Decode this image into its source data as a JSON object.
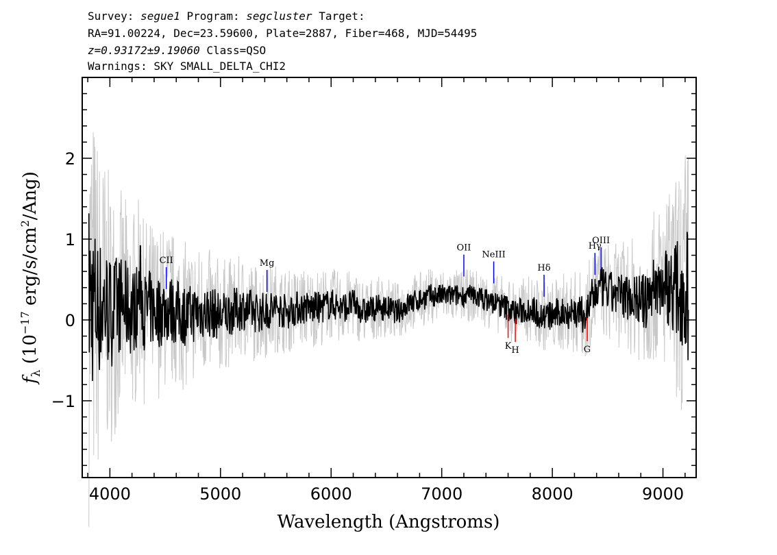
{
  "header": {
    "line1": {
      "survey_label": "Survey:",
      "survey": "segue1",
      "program_label": "Program:",
      "program": "segcluster",
      "target_label": "Target:"
    },
    "line2": "RA=91.00224, Dec=23.59600, Plate=2887, Fiber=468, MJD=54495",
    "line3": {
      "redshift": "z=0.93172±9.19060",
      "class": "Class=QSO"
    },
    "line4": "Warnings: SKY SMALL_DELTA_CHI2"
  },
  "chart_data": {
    "type": "line",
    "xlabel": "Wavelength (Angstroms)",
    "ylabel_parts": [
      "f",
      "λ",
      " (10",
      "−17",
      " erg/s/cm",
      "2",
      "/Ang)"
    ],
    "xlim": [
      3750,
      9300
    ],
    "ylim": [
      -1.95,
      3.0
    ],
    "x_ticks": [
      4000,
      5000,
      6000,
      7000,
      8000,
      9000
    ],
    "x_tick_labels": [
      "4000",
      "5000",
      "6000",
      "7000",
      "8000",
      "9000"
    ],
    "y_ticks": [
      -1,
      0,
      1,
      2
    ],
    "y_tick_labels": [
      "−1",
      "0",
      "1",
      "2"
    ],
    "series": [
      {
        "role": "flux",
        "color": "#000000",
        "x": [
          3810,
          3850,
          3900,
          3950,
          4000,
          4050,
          4100,
          4150,
          4200,
          4250,
          4280,
          4300,
          4350,
          4400,
          4450,
          4500,
          4600,
          4700,
          4800,
          4900,
          5000,
          5100,
          5200,
          5300,
          5400,
          5500,
          5600,
          5700,
          5800,
          5900,
          6000,
          6100,
          6200,
          6300,
          6400,
          6500,
          6600,
          6700,
          6800,
          6900,
          7000,
          7100,
          7200,
          7300,
          7400,
          7500,
          7600,
          7650,
          7700,
          7800,
          7900,
          8000,
          8100,
          8200,
          8300,
          8350,
          8400,
          8450,
          8500,
          8600,
          8700,
          8800,
          8850,
          8900,
          9000,
          9100,
          9200,
          9230
        ],
        "y": [
          0.3,
          0.2,
          0.15,
          0.2,
          0.1,
          0.15,
          0.2,
          0.15,
          0.1,
          0.2,
          0.5,
          0.1,
          0.15,
          0.1,
          0.1,
          0.15,
          0.1,
          0.05,
          0.1,
          0.1,
          0.05,
          0.1,
          0.15,
          0.1,
          0.1,
          0.15,
          0.1,
          0.15,
          0.15,
          0.15,
          0.2,
          0.15,
          0.2,
          0.1,
          0.15,
          0.15,
          0.1,
          0.2,
          0.25,
          0.3,
          0.3,
          0.3,
          0.3,
          0.3,
          0.25,
          0.2,
          0.15,
          0.1,
          0.1,
          0.15,
          0.05,
          0.05,
          0.1,
          0.1,
          0.05,
          0.25,
          0.35,
          0.4,
          0.35,
          0.3,
          0.3,
          0.25,
          0.2,
          0.4,
          0.45,
          0.4,
          0.35,
          0.3
        ]
      },
      {
        "role": "error",
        "color": "#c8c8c8",
        "x": [
          3810,
          3900,
          4000,
          4100,
          4200,
          4300,
          4400,
          4500,
          4600,
          4700,
          4800,
          4900,
          5000,
          5200,
          5400,
          5600,
          5800,
          6000,
          6200,
          6400,
          6600,
          6800,
          7000,
          7200,
          7400,
          7600,
          7800,
          8000,
          8200,
          8400,
          8600,
          8800,
          9000,
          9100,
          9230
        ],
        "y": [
          2.2,
          1.6,
          1.3,
          1.1,
          1.0,
          0.9,
          0.85,
          0.8,
          0.75,
          0.7,
          0.65,
          0.6,
          0.55,
          0.5,
          0.45,
          0.4,
          0.38,
          0.35,
          0.33,
          0.3,
          0.28,
          0.27,
          0.26,
          0.25,
          0.26,
          0.3,
          0.32,
          0.35,
          0.4,
          0.45,
          0.5,
          0.6,
          0.8,
          1.0,
          1.5
        ]
      }
    ],
    "emission_lines": [
      {
        "label": "CII",
        "x": 4510,
        "color": "#0000ff"
      },
      {
        "label": "Mg",
        "x": 5420,
        "color": "#0000ff"
      },
      {
        "label": "OII",
        "x": 7200,
        "color": "#0000ff"
      },
      {
        "label": "NeIII",
        "x": 7470,
        "color": "#0000ff"
      },
      {
        "label": "Hδ",
        "x": 7925,
        "color": "#0000ff"
      },
      {
        "label": "Hγ",
        "x": 8385,
        "color": "#0000ff"
      },
      {
        "label": "OIII",
        "x": 8440,
        "color": "#0000ff"
      }
    ],
    "absorption_lines": [
      {
        "label": "K",
        "x": 7600,
        "color": "#ff0000"
      },
      {
        "label": "H",
        "x": 7665,
        "color": "#ff0000"
      },
      {
        "label": "G",
        "x": 8315,
        "color": "#ff0000"
      }
    ]
  }
}
